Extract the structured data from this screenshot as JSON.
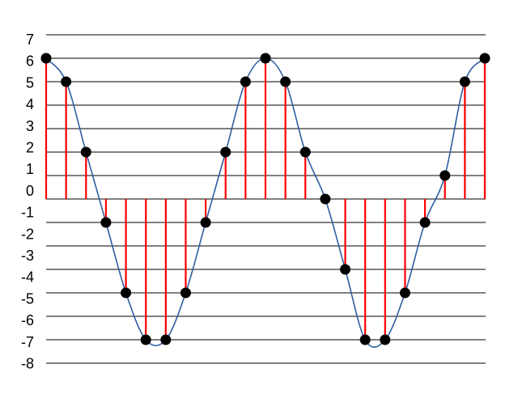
{
  "chart_data": {
    "type": "stem",
    "title": "",
    "xlabel": "",
    "ylabel": "",
    "y_tick_labels": [
      "7",
      "6",
      "5",
      "4",
      "3",
      "2",
      "1",
      "0",
      "-1",
      "-2",
      "-3",
      "-4",
      "-5",
      "-6",
      "-7",
      "-8"
    ],
    "ylim": [
      -8,
      7
    ],
    "grid": true,
    "legend": "none",
    "x": [
      0,
      1,
      2,
      3,
      4,
      5,
      6,
      7,
      8,
      9,
      10,
      11,
      12,
      13,
      14,
      15,
      16,
      17,
      18,
      19,
      20,
      21,
      22
    ],
    "samples": [
      6,
      5,
      2,
      -2,
      -5,
      -7,
      -7,
      -5,
      -2,
      2,
      5,
      6,
      5,
      2,
      0,
      -4,
      -7,
      -7,
      -5,
      -2,
      1,
      5,
      6
    ],
    "colors": {
      "stem": "#ff0000",
      "curve": "#2e5fa3",
      "marker": "#000000",
      "grid": "#000000"
    }
  }
}
